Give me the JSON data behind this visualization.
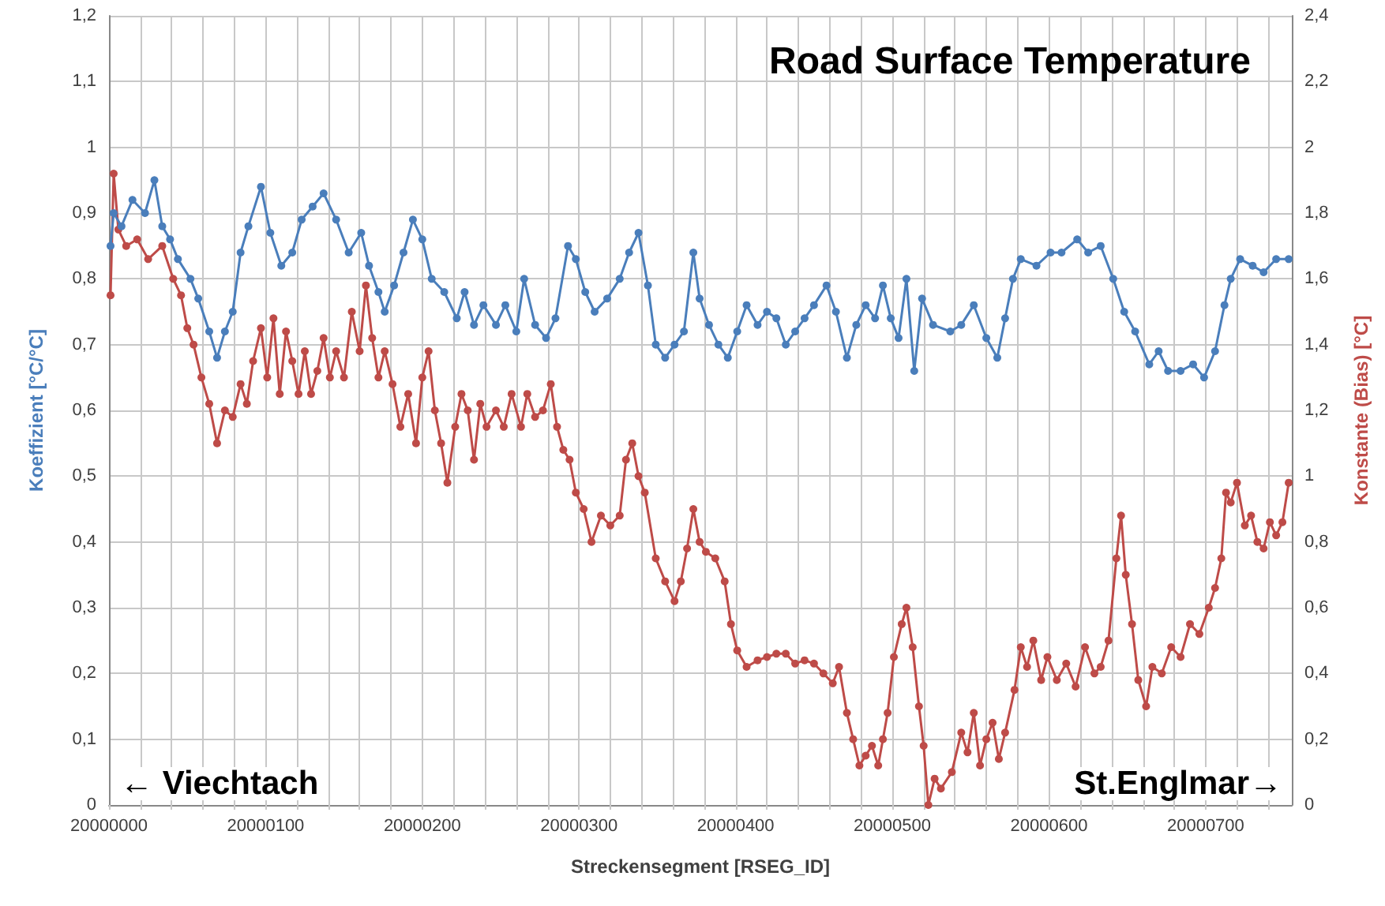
{
  "chart_data": {
    "type": "line",
    "title": "Road Surface Temperature",
    "xlabel": "Streckensegment [RSEG_ID]",
    "ylabel": "Koeffizient [°C/°C]",
    "y2label": "Konstante (Bias) [°C]",
    "annotations": [
      "← Viechtach",
      "St.Englmar→"
    ],
    "marker": "circle",
    "grid": true,
    "xlim": [
      20000000,
      20000755
    ],
    "xticks": [
      20000000,
      {
        "value": 20000020,
        "label": null
      },
      {
        "value": 20000040,
        "label": null
      },
      {
        "value": 20000060,
        "label": null
      },
      {
        "value": 20000080,
        "label": null
      },
      20000100,
      {
        "value": 20000120,
        "label": null
      },
      {
        "value": 20000140,
        "label": null
      },
      {
        "value": 20000160,
        "label": null
      },
      {
        "value": 20000180,
        "label": null
      },
      20000200,
      {
        "value": 20000220,
        "label": null
      },
      {
        "value": 20000240,
        "label": null
      },
      {
        "value": 20000260,
        "label": null
      },
      {
        "value": 20000280,
        "label": null
      },
      20000300,
      {
        "value": 20000320,
        "label": null
      },
      {
        "value": 20000340,
        "label": null
      },
      {
        "value": 20000360,
        "label": null
      },
      {
        "value": 20000380,
        "label": null
      },
      20000400,
      {
        "value": 20000420,
        "label": null
      },
      {
        "value": 20000440,
        "label": null
      },
      {
        "value": 20000460,
        "label": null
      },
      {
        "value": 20000480,
        "label": null
      },
      20000500,
      {
        "value": 20000520,
        "label": null
      },
      {
        "value": 20000540,
        "label": null
      },
      {
        "value": 20000560,
        "label": null
      },
      {
        "value": 20000580,
        "label": null
      },
      20000600,
      {
        "value": 20000620,
        "label": null
      },
      {
        "value": 20000640,
        "label": null
      },
      {
        "value": 20000660,
        "label": null
      },
      {
        "value": 20000680,
        "label": null
      },
      20000700,
      {
        "value": 20000720,
        "label": null
      },
      {
        "value": 20000740,
        "label": null
      }
    ],
    "ylim": [
      0,
      1.2
    ],
    "yticks": [
      0,
      {
        "value": 0.1,
        "label": "0,1"
      },
      {
        "value": 0.2,
        "label": "0,2"
      },
      {
        "value": 0.3,
        "label": "0,3"
      },
      {
        "value": 0.4,
        "label": "0,4"
      },
      {
        "value": 0.5,
        "label": "0,5"
      },
      {
        "value": 0.6,
        "label": "0,6"
      },
      {
        "value": 0.7,
        "label": "0,7"
      },
      {
        "value": 0.8,
        "label": "0,8"
      },
      {
        "value": 0.9,
        "label": "0,9"
      },
      1,
      {
        "value": 1.1,
        "label": "1,1"
      },
      {
        "value": 1.2,
        "label": "1,2"
      }
    ],
    "y2lim": [
      0,
      2.4
    ],
    "y2ticks": [
      0,
      {
        "value": 0.2,
        "label": "0,2"
      },
      {
        "value": 0.4,
        "label": "0,4"
      },
      {
        "value": 0.6,
        "label": "0,6"
      },
      {
        "value": 0.8,
        "label": "0,8"
      },
      1,
      {
        "value": 1.2,
        "label": "1,2"
      },
      {
        "value": 1.4,
        "label": "1,4"
      },
      {
        "value": 1.6,
        "label": "1,6"
      },
      {
        "value": 1.8,
        "label": "1,8"
      },
      2,
      {
        "value": 2.2,
        "label": "2,2"
      },
      {
        "value": 2.4,
        "label": "2,4"
      }
    ],
    "series": [
      {
        "color": "#4a7ebb",
        "x": [
          20000001,
          20000003,
          20000008,
          20000015,
          20000023,
          20000029,
          20000034,
          20000039,
          20000044,
          20000052,
          20000057,
          20000064,
          20000069,
          20000074,
          20000079,
          20000084,
          20000089,
          20000097,
          20000103,
          20000110,
          20000117,
          20000123,
          20000130,
          20000137,
          20000145,
          20000153,
          20000161,
          20000166,
          20000172,
          20000176,
          20000182,
          20000188,
          20000194,
          20000200,
          20000206,
          20000214,
          20000222,
          20000227,
          20000233,
          20000239,
          20000247,
          20000253,
          20000260,
          20000265,
          20000272,
          20000279,
          20000285,
          20000293,
          20000298,
          20000304,
          20000310,
          20000318,
          20000326,
          20000332,
          20000338,
          20000344,
          20000349,
          20000355,
          20000361,
          20000367,
          20000373,
          20000377,
          20000383,
          20000389,
          20000395,
          20000401,
          20000407,
          20000414,
          20000420,
          20000426,
          20000432,
          20000438,
          20000444,
          20000450,
          20000458,
          20000464,
          20000471,
          20000477,
          20000483,
          20000489,
          20000494,
          20000499,
          20000504,
          20000509,
          20000514,
          20000519,
          20000526,
          20000537,
          20000544,
          20000552,
          20000560,
          20000567,
          20000572,
          20000577,
          20000582,
          20000592,
          20000601,
          20000608,
          20000618,
          20000625,
          20000633,
          20000641,
          20000648,
          20000655,
          20000664,
          20000670,
          20000676,
          20000684,
          20000692,
          20000699,
          20000706,
          20000712,
          20000716,
          20000722,
          20000730,
          20000737,
          20000745,
          20000753
        ],
        "values": [
          0.85,
          0.9,
          0.88,
          0.92,
          0.9,
          0.95,
          0.88,
          0.86,
          0.83,
          0.8,
          0.77,
          0.72,
          0.68,
          0.72,
          0.75,
          0.84,
          0.88,
          0.94,
          0.87,
          0.82,
          0.84,
          0.89,
          0.91,
          0.93,
          0.89,
          0.84,
          0.87,
          0.82,
          0.78,
          0.75,
          0.79,
          0.84,
          0.89,
          0.86,
          0.8,
          0.78,
          0.74,
          0.78,
          0.73,
          0.76,
          0.73,
          0.76,
          0.72,
          0.8,
          0.73,
          0.71,
          0.74,
          0.85,
          0.83,
          0.78,
          0.75,
          0.77,
          0.8,
          0.84,
          0.87,
          0.79,
          0.7,
          0.68,
          0.7,
          0.72,
          0.84,
          0.77,
          0.73,
          0.7,
          0.68,
          0.72,
          0.76,
          0.73,
          0.75,
          0.74,
          0.7,
          0.72,
          0.74,
          0.76,
          0.79,
          0.75,
          0.68,
          0.73,
          0.76,
          0.74,
          0.79,
          0.74,
          0.71,
          0.8,
          0.66,
          0.77,
          0.73,
          0.72,
          0.73,
          0.76,
          0.71,
          0.68,
          0.74,
          0.8,
          0.83,
          0.82,
          0.84,
          0.84,
          0.86,
          0.84,
          0.85,
          0.8,
          0.75,
          0.72,
          0.67,
          0.69,
          0.66,
          0.66,
          0.67,
          0.65,
          0.69,
          0.76,
          0.8,
          0.83,
          0.82,
          0.81,
          0.83,
          0.83
        ]
      },
      {
        "color": "#be4b48",
        "axis": "y2",
        "x": [
          20000001,
          20000003,
          20000006,
          20000011,
          20000018,
          20000025,
          20000034,
          20000041,
          20000046,
          20000050,
          20000054,
          20000059,
          20000064,
          20000069,
          20000074,
          20000079,
          20000084,
          20000088,
          20000092,
          20000097,
          20000101,
          20000105,
          20000109,
          20000113,
          20000117,
          20000121,
          20000125,
          20000129,
          20000133,
          20000137,
          20000141,
          20000145,
          20000150,
          20000155,
          20000160,
          20000164,
          20000168,
          20000172,
          20000176,
          20000181,
          20000186,
          20000191,
          20000196,
          20000200,
          20000204,
          20000208,
          20000212,
          20000216,
          20000221,
          20000225,
          20000229,
          20000233,
          20000237,
          20000241,
          20000247,
          20000252,
          20000257,
          20000263,
          20000267,
          20000272,
          20000277,
          20000282,
          20000286,
          20000290,
          20000294,
          20000298,
          20000303,
          20000308,
          20000314,
          20000320,
          20000326,
          20000330,
          20000334,
          20000338,
          20000342,
          20000349,
          20000355,
          20000361,
          20000365,
          20000369,
          20000373,
          20000377,
          20000381,
          20000387,
          20000393,
          20000397,
          20000401,
          20000407,
          20000414,
          20000420,
          20000426,
          20000432,
          20000438,
          20000444,
          20000450,
          20000456,
          20000462,
          20000466,
          20000471,
          20000475,
          20000479,
          20000483,
          20000487,
          20000491,
          20000494,
          20000497,
          20000501,
          20000506,
          20000509,
          20000513,
          20000517,
          20000520,
          20000523,
          20000527,
          20000531,
          20000538,
          20000544,
          20000548,
          20000552,
          20000556,
          20000560,
          20000564,
          20000568,
          20000572,
          20000578,
          20000582,
          20000586,
          20000590,
          20000595,
          20000599,
          20000605,
          20000611,
          20000617,
          20000623,
          20000629,
          20000633,
          20000638,
          20000643,
          20000646,
          20000649,
          20000653,
          20000657,
          20000662,
          20000666,
          20000672,
          20000678,
          20000684,
          20000690,
          20000696,
          20000702,
          20000706,
          20000710,
          20000713,
          20000716,
          20000720,
          20000725,
          20000729,
          20000733,
          20000737,
          20000741,
          20000745,
          20000749,
          20000753
        ],
        "values": [
          1.55,
          1.92,
          1.75,
          1.7,
          1.72,
          1.66,
          1.7,
          1.6,
          1.55,
          1.45,
          1.4,
          1.3,
          1.22,
          1.1,
          1.2,
          1.18,
          1.28,
          1.22,
          1.35,
          1.45,
          1.3,
          1.48,
          1.25,
          1.44,
          1.35,
          1.25,
          1.38,
          1.25,
          1.32,
          1.42,
          1.3,
          1.38,
          1.3,
          1.5,
          1.38,
          1.58,
          1.42,
          1.3,
          1.38,
          1.28,
          1.15,
          1.25,
          1.1,
          1.3,
          1.38,
          1.2,
          1.1,
          0.98,
          1.15,
          1.25,
          1.2,
          1.05,
          1.22,
          1.15,
          1.2,
          1.15,
          1.25,
          1.15,
          1.25,
          1.18,
          1.2,
          1.28,
          1.15,
          1.08,
          1.05,
          0.95,
          0.9,
          0.8,
          0.88,
          0.85,
          0.88,
          1.05,
          1.1,
          1.0,
          0.95,
          0.75,
          0.68,
          0.62,
          0.68,
          0.78,
          0.9,
          0.8,
          0.77,
          0.75,
          0.68,
          0.55,
          0.47,
          0.42,
          0.44,
          0.45,
          0.46,
          0.46,
          0.43,
          0.44,
          0.43,
          0.4,
          0.37,
          0.42,
          0.28,
          0.2,
          0.12,
          0.15,
          0.18,
          0.12,
          0.2,
          0.28,
          0.45,
          0.55,
          0.6,
          0.48,
          0.3,
          0.18,
          0.0,
          0.08,
          0.05,
          0.1,
          0.22,
          0.16,
          0.28,
          0.12,
          0.2,
          0.25,
          0.14,
          0.22,
          0.35,
          0.48,
          0.42,
          0.5,
          0.38,
          0.45,
          0.38,
          0.43,
          0.36,
          0.48,
          0.4,
          0.42,
          0.5,
          0.75,
          0.88,
          0.7,
          0.55,
          0.38,
          0.3,
          0.42,
          0.4,
          0.48,
          0.45,
          0.55,
          0.52,
          0.6,
          0.66,
          0.75,
          0.95,
          0.92,
          0.98,
          0.85,
          0.88,
          0.8,
          0.78,
          0.86,
          0.82,
          0.86,
          0.98
        ]
      }
    ]
  }
}
